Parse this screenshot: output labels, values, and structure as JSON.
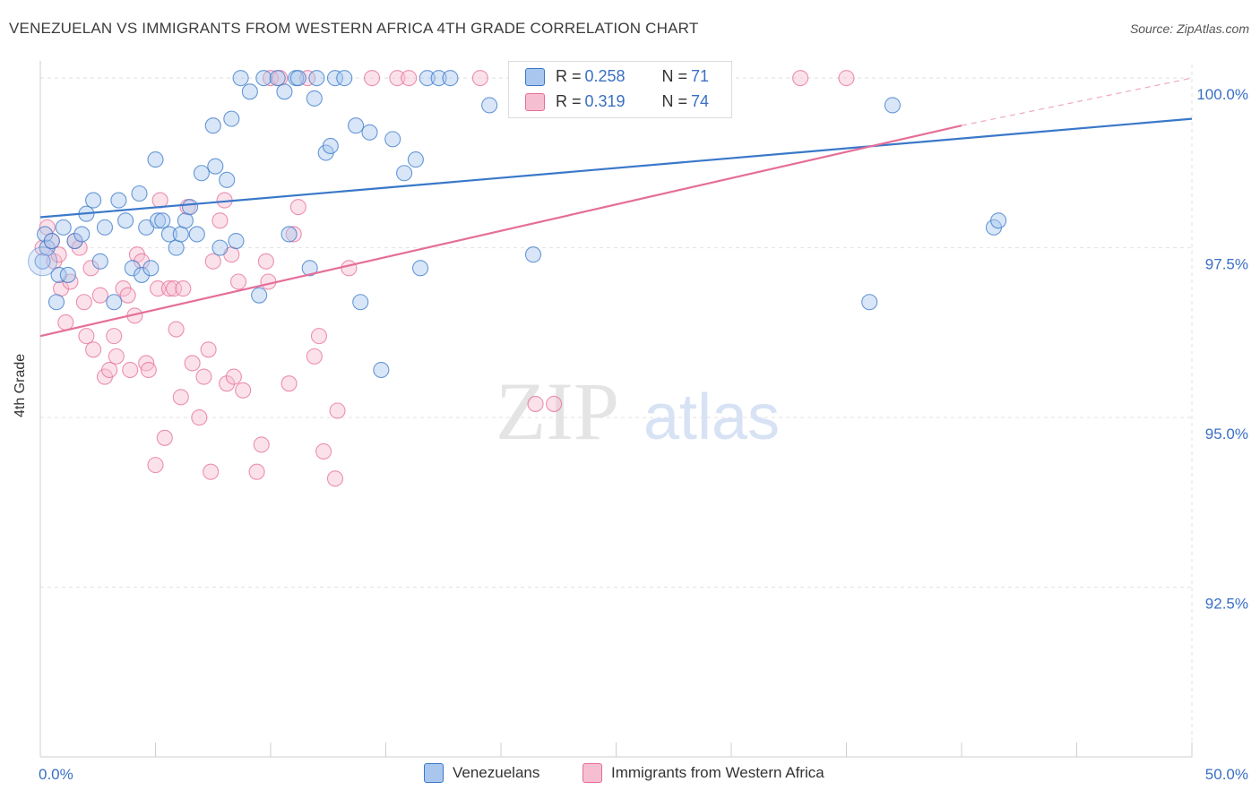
{
  "title": "VENEZUELAN VS IMMIGRANTS FROM WESTERN AFRICA 4TH GRADE CORRELATION CHART",
  "source": "Source: ZipAtlas.com",
  "watermark": {
    "zip": "ZIP",
    "atlas": "atlas"
  },
  "colors": {
    "blue": "#3a78c9",
    "blue_fill": "#a9c7ee",
    "pink": "#e56e98",
    "pink_fill": "#f6bfd1",
    "tick_label": "#3a6fc4",
    "grid": "#e2e2e2"
  },
  "legend_top": {
    "rows": [
      {
        "r_label": "R = ",
        "r_value": "0.258",
        "n_label": "N = ",
        "n_value": "71"
      },
      {
        "r_label": "R = ",
        "r_value": "0.319",
        "n_label": "N = ",
        "n_value": "74"
      }
    ]
  },
  "chart_data": {
    "type": "scatter",
    "title": "VENEZUELAN VS IMMIGRANTS FROM WESTERN AFRICA 4TH GRADE CORRELATION CHART",
    "xlabel": "",
    "ylabel": "4th Grade",
    "xlim": [
      0,
      50
    ],
    "ylim": [
      90.0,
      100.2
    ],
    "x_tick_labels": [
      "0.0%",
      "50.0%"
    ],
    "y_ticks": [
      92.5,
      95.0,
      97.5,
      100.0
    ],
    "y_tick_labels": [
      "92.5%",
      "95.0%",
      "97.5%",
      "100.0%"
    ],
    "grid": true,
    "legend_position": "bottom",
    "series": [
      {
        "name": "Venezuelans",
        "color": "#3a78c9",
        "fill": "#a9c7ee",
        "r": 0.258,
        "n": 71,
        "trend": {
          "x0": 0,
          "y0": 97.95,
          "x1": 50,
          "y1": 99.4
        },
        "points": [
          [
            0.1,
            97.3
          ],
          [
            0.2,
            97.7
          ],
          [
            0.3,
            97.5
          ],
          [
            0.5,
            97.6
          ],
          [
            0.7,
            96.7
          ],
          [
            0.8,
            97.1
          ],
          [
            1.0,
            97.8
          ],
          [
            1.2,
            97.1
          ],
          [
            1.5,
            97.6
          ],
          [
            1.8,
            97.7
          ],
          [
            2.0,
            98.0
          ],
          [
            2.3,
            98.2
          ],
          [
            2.6,
            97.3
          ],
          [
            2.8,
            97.8
          ],
          [
            3.2,
            96.7
          ],
          [
            3.4,
            98.2
          ],
          [
            3.7,
            97.9
          ],
          [
            4.0,
            97.2
          ],
          [
            4.3,
            98.3
          ],
          [
            4.4,
            97.1
          ],
          [
            4.6,
            97.8
          ],
          [
            4.8,
            97.2
          ],
          [
            5.0,
            98.8
          ],
          [
            5.1,
            97.9
          ],
          [
            5.3,
            97.9
          ],
          [
            5.6,
            97.7
          ],
          [
            5.9,
            97.5
          ],
          [
            6.1,
            97.7
          ],
          [
            6.3,
            97.9
          ],
          [
            6.5,
            98.1
          ],
          [
            6.8,
            97.7
          ],
          [
            7.0,
            98.6
          ],
          [
            7.5,
            99.3
          ],
          [
            7.6,
            98.7
          ],
          [
            7.8,
            97.5
          ],
          [
            8.1,
            98.5
          ],
          [
            8.3,
            99.4
          ],
          [
            8.5,
            97.6
          ],
          [
            8.7,
            100.0
          ],
          [
            9.1,
            99.8
          ],
          [
            9.5,
            96.8
          ],
          [
            9.7,
            100.0
          ],
          [
            10.3,
            100.0
          ],
          [
            10.6,
            99.8
          ],
          [
            10.8,
            97.7
          ],
          [
            11.1,
            100.0
          ],
          [
            11.2,
            100.0
          ],
          [
            11.7,
            97.2
          ],
          [
            11.9,
            99.7
          ],
          [
            12.0,
            100.0
          ],
          [
            12.4,
            98.9
          ],
          [
            12.6,
            99.0
          ],
          [
            12.8,
            100.0
          ],
          [
            13.2,
            100.0
          ],
          [
            13.7,
            99.3
          ],
          [
            13.9,
            96.7
          ],
          [
            14.3,
            99.2
          ],
          [
            14.8,
            95.7
          ],
          [
            15.3,
            99.1
          ],
          [
            15.8,
            98.6
          ],
          [
            16.3,
            98.8
          ],
          [
            16.5,
            97.2
          ],
          [
            16.8,
            100.0
          ],
          [
            17.3,
            100.0
          ],
          [
            17.8,
            100.0
          ],
          [
            19.5,
            99.6
          ],
          [
            21.4,
            97.4
          ],
          [
            36.0,
            96.7
          ],
          [
            37.0,
            99.6
          ],
          [
            41.4,
            97.8
          ],
          [
            41.6,
            97.9
          ]
        ]
      },
      {
        "name": "Immigrants from Western Africa",
        "color": "#e56e98",
        "fill": "#f6bfd1",
        "r": 0.319,
        "n": 74,
        "trend": {
          "x0": 0,
          "y0": 96.2,
          "x1": 40,
          "y1": 99.3,
          "dashed_to_x": 50,
          "dashed_to_y": 100.0
        },
        "points": [
          [
            0.1,
            97.5
          ],
          [
            0.3,
            97.8
          ],
          [
            0.5,
            97.6
          ],
          [
            0.6,
            97.3
          ],
          [
            0.8,
            97.4
          ],
          [
            0.9,
            96.9
          ],
          [
            1.1,
            96.4
          ],
          [
            1.3,
            97.0
          ],
          [
            1.5,
            97.6
          ],
          [
            1.7,
            97.5
          ],
          [
            1.9,
            96.7
          ],
          [
            2.0,
            96.2
          ],
          [
            2.2,
            97.2
          ],
          [
            2.3,
            96.0
          ],
          [
            2.6,
            96.8
          ],
          [
            2.8,
            95.6
          ],
          [
            3.0,
            95.7
          ],
          [
            3.2,
            96.2
          ],
          [
            3.3,
            95.9
          ],
          [
            3.6,
            96.9
          ],
          [
            3.8,
            96.8
          ],
          [
            3.9,
            95.7
          ],
          [
            4.1,
            96.5
          ],
          [
            4.2,
            97.4
          ],
          [
            4.4,
            97.3
          ],
          [
            4.6,
            95.8
          ],
          [
            4.7,
            95.7
          ],
          [
            5.0,
            94.3
          ],
          [
            5.1,
            96.9
          ],
          [
            5.2,
            98.2
          ],
          [
            5.4,
            94.7
          ],
          [
            5.6,
            96.9
          ],
          [
            5.8,
            96.9
          ],
          [
            5.9,
            96.3
          ],
          [
            6.1,
            95.3
          ],
          [
            6.2,
            96.9
          ],
          [
            6.4,
            98.1
          ],
          [
            6.6,
            95.8
          ],
          [
            6.9,
            95.0
          ],
          [
            7.1,
            95.6
          ],
          [
            7.3,
            96.0
          ],
          [
            7.4,
            94.2
          ],
          [
            7.5,
            97.3
          ],
          [
            7.8,
            97.9
          ],
          [
            8.0,
            98.2
          ],
          [
            8.1,
            95.5
          ],
          [
            8.3,
            97.4
          ],
          [
            8.4,
            95.6
          ],
          [
            8.6,
            97.0
          ],
          [
            8.8,
            95.4
          ],
          [
            9.4,
            94.2
          ],
          [
            9.6,
            94.6
          ],
          [
            9.8,
            97.3
          ],
          [
            9.9,
            97.0
          ],
          [
            10.0,
            100.0
          ],
          [
            10.4,
            100.0
          ],
          [
            10.8,
            95.5
          ],
          [
            11.0,
            97.7
          ],
          [
            11.2,
            98.1
          ],
          [
            11.6,
            100.0
          ],
          [
            11.9,
            95.9
          ],
          [
            12.1,
            96.2
          ],
          [
            12.3,
            94.5
          ],
          [
            12.8,
            94.1
          ],
          [
            12.9,
            95.1
          ],
          [
            13.4,
            97.2
          ],
          [
            14.4,
            100.0
          ],
          [
            15.5,
            100.0
          ],
          [
            16.0,
            100.0
          ],
          [
            19.1,
            100.0
          ],
          [
            21.5,
            95.2
          ],
          [
            22.3,
            95.2
          ],
          [
            33.0,
            100.0
          ],
          [
            35.0,
            100.0
          ]
        ]
      }
    ]
  }
}
